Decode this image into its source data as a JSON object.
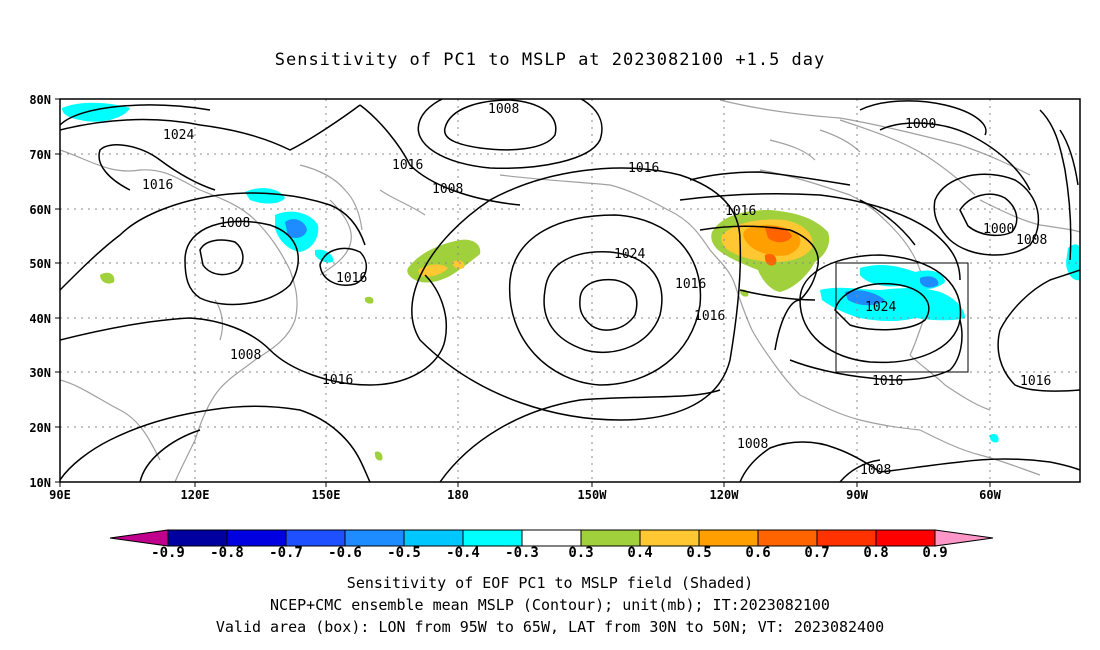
{
  "title": "Sensitivity of PC1 to MSLP at 2023082100 +1.5 day",
  "map": {
    "lat_labels": [
      "80N",
      "70N",
      "60N",
      "50N",
      "40N",
      "30N",
      "20N",
      "10N"
    ],
    "lon_labels": [
      "90E",
      "120E",
      "150E",
      "180",
      "150W",
      "120W",
      "90W",
      "60W"
    ],
    "contour_labels": [
      "1008",
      "1024",
      "1016",
      "1016",
      "1008",
      "1008",
      "1016",
      "1008",
      "1016",
      "1024",
      "1016",
      "1016",
      "1016",
      "1000",
      "1000",
      "1008",
      "1024",
      "1016",
      "1016",
      "1008",
      "1008"
    ],
    "valid_box": {
      "lon_from": "95W",
      "lon_to": "65W",
      "lat_from": "30N",
      "lat_to": "50N"
    },
    "colors": {
      "contour": "#000000",
      "coastline": "#a0a0a0",
      "grid": "#888888"
    }
  },
  "colorbar": {
    "labels": [
      "-0.9",
      "-0.8",
      "-0.7",
      "-0.6",
      "-0.5",
      "-0.4",
      "-0.3",
      "0.3",
      "0.4",
      "0.5",
      "0.6",
      "0.7",
      "0.8",
      "0.9"
    ],
    "colors": [
      "#c0008c",
      "#0000a0",
      "#0000e0",
      "#1e50ff",
      "#1e8cff",
      "#00c8ff",
      "#00ffff",
      "#ffffff",
      "#a0d03c",
      "#ffc832",
      "#ffa000",
      "#ff6400",
      "#ff3200",
      "#ff0000",
      "#ff96c8"
    ]
  },
  "captions": {
    "line1": "Sensitivity of EOF PC1 to MSLP field (Shaded)",
    "line2": "NCEP+CMC ensemble mean MSLP (Contour); unit(mb); IT:2023082100",
    "line3": "Valid area (box): LON from 95W to 65W, LAT from 30N to 50N; VT: 2023082400"
  }
}
